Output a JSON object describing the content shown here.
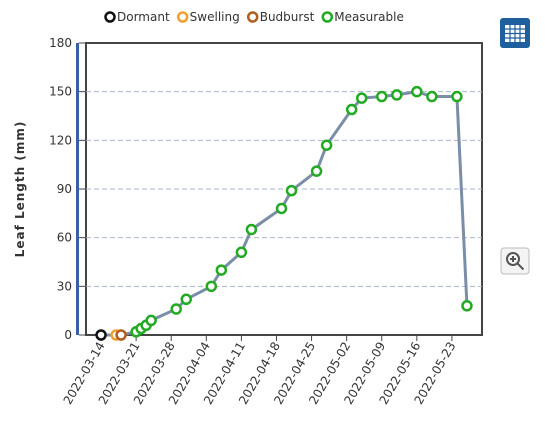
{
  "chart_data": {
    "type": "line",
    "y_label": "Leaf Length (mm)",
    "xlim": [
      "2022-03-11",
      "2022-05-29"
    ],
    "xticks": [
      "2022-03-14",
      "2022-03-21",
      "2022-03-28",
      "2022-04-04",
      "2022-04-11",
      "2022-04-18",
      "2022-04-25",
      "2022-05-02",
      "2022-05-09",
      "2022-05-16",
      "2022-05-23"
    ],
    "ylim": [
      0,
      180
    ],
    "yticks": [
      0,
      30,
      60,
      90,
      120,
      150,
      180
    ],
    "grid": true,
    "line_color": "#7a8ea8",
    "series": [
      {
        "name": "Dormant",
        "color": "#111111",
        "x": [
          "2022-03-14"
        ],
        "values": [
          0
        ]
      },
      {
        "name": "Swelling",
        "color": "#f0a030",
        "x": [
          "2022-03-17"
        ],
        "values": [
          0
        ]
      },
      {
        "name": "Budburst",
        "color": "#b0601e",
        "x": [
          "2022-03-18"
        ],
        "values": [
          0
        ]
      },
      {
        "name": "Measurable",
        "color": "#22aa22",
        "x": [
          "2022-03-21",
          "2022-03-22",
          "2022-03-23",
          "2022-03-24",
          "2022-03-29",
          "2022-03-31",
          "2022-04-05",
          "2022-04-07",
          "2022-04-11",
          "2022-04-13",
          "2022-04-19",
          "2022-04-21",
          "2022-04-26",
          "2022-04-28",
          "2022-05-03",
          "2022-05-05",
          "2022-05-09",
          "2022-05-12",
          "2022-05-16",
          "2022-05-19",
          "2022-05-24",
          "2022-05-26"
        ],
        "values": [
          2,
          4,
          6,
          9,
          16,
          22,
          30,
          40,
          51,
          65,
          78,
          89,
          101,
          117,
          139,
          146,
          147,
          148,
          150,
          147,
          147,
          18
        ]
      }
    ]
  }
}
